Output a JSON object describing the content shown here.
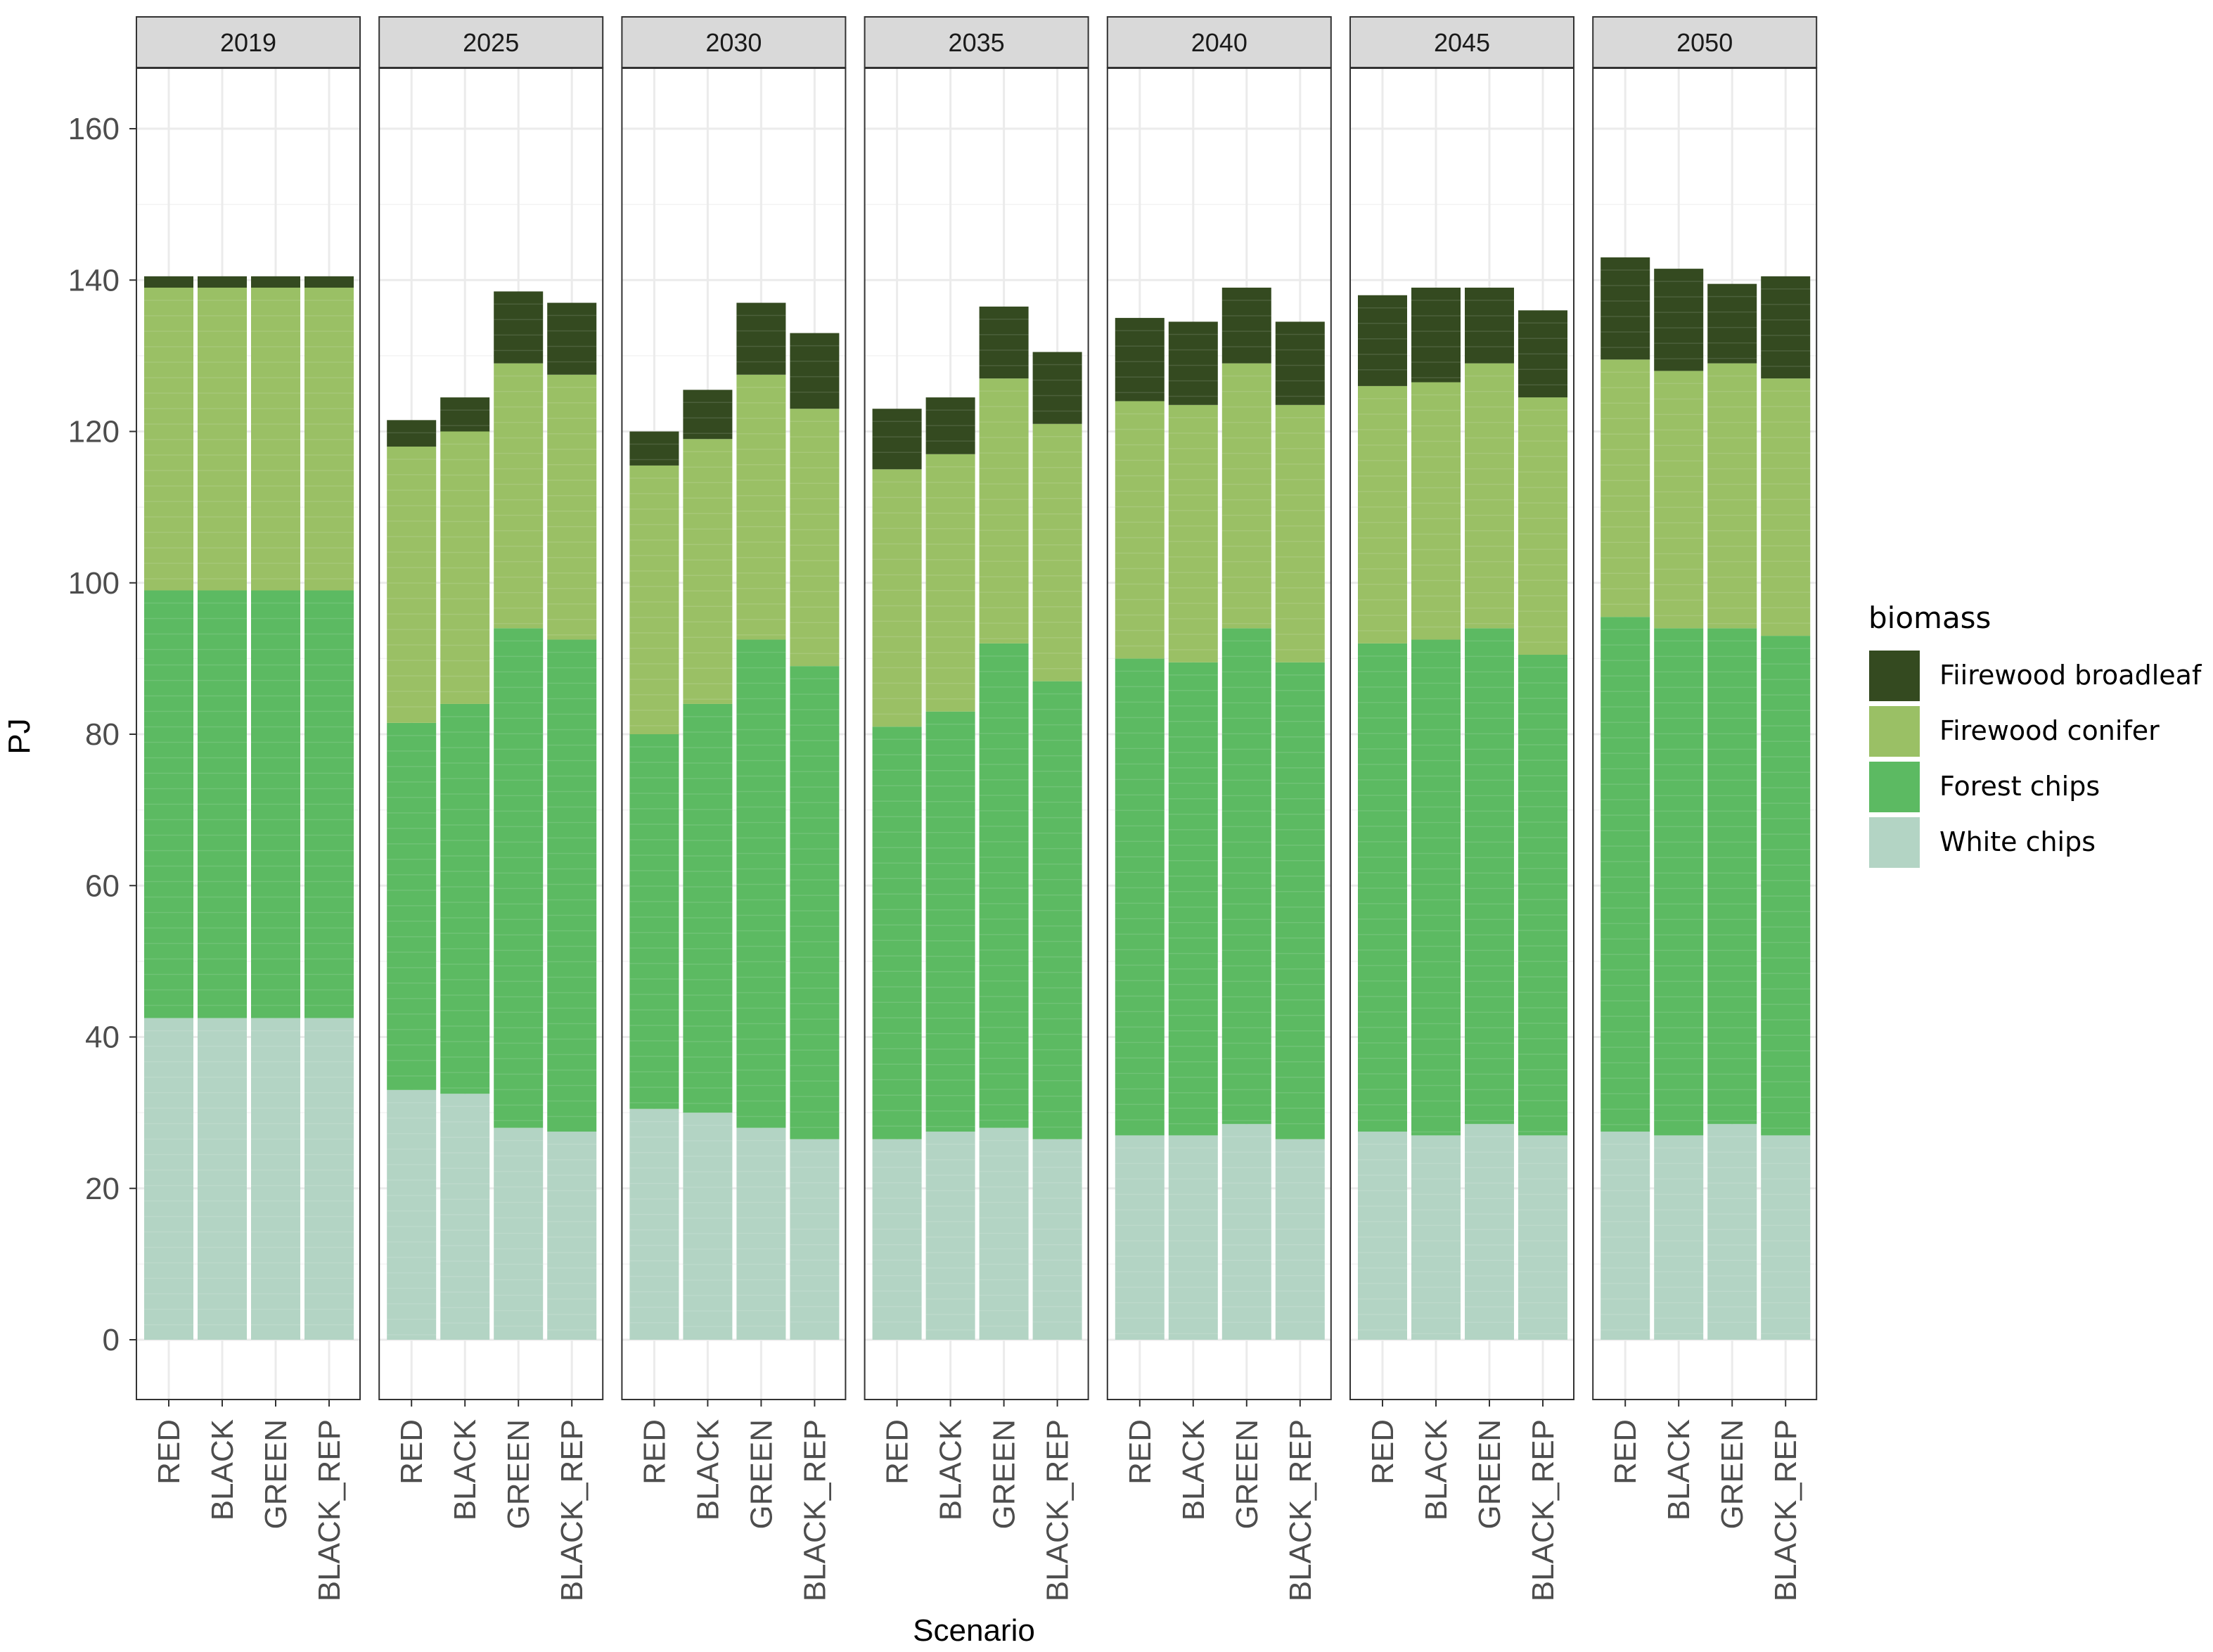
{
  "chart_data": {
    "type": "bar",
    "stacked": true,
    "facet_by": "year",
    "facets": [
      "2019",
      "2025",
      "2030",
      "2035",
      "2040",
      "2045",
      "2050"
    ],
    "categories": [
      "RED",
      "BLACK",
      "GREEN",
      "BLACK_REP"
    ],
    "xlabel": "Scenario",
    "ylabel": "PJ",
    "ylim": [
      -8,
      168
    ],
    "yticks": [
      "0",
      "20",
      "40",
      "60",
      "80",
      "100",
      "120",
      "140",
      "160"
    ],
    "grid": true,
    "legend": {
      "title": "biomass",
      "position": "right",
      "entries": [
        "Fiirewood broadleaf",
        "Firewood conifer",
        "Forest chips",
        "White chips"
      ]
    },
    "series": [
      {
        "name": "White chips",
        "color": "#b3d4c4",
        "values": [
          [
            42.5,
            42.5,
            42.5,
            42.5
          ],
          [
            33,
            32.5,
            28,
            27.5
          ],
          [
            30.5,
            30,
            28,
            26.5
          ],
          [
            26.5,
            27.5,
            28,
            26.5
          ],
          [
            27,
            27,
            28.5,
            26.5
          ],
          [
            27.5,
            27,
            28.5,
            27
          ],
          [
            27.5,
            27,
            28.5,
            27
          ]
        ]
      },
      {
        "name": "Forest chips",
        "color": "#5cba62",
        "values": [
          [
            56.5,
            56.5,
            56.5,
            56.5
          ],
          [
            48.5,
            51.5,
            66,
            65
          ],
          [
            49.5,
            54,
            64.5,
            62.5
          ],
          [
            54.5,
            55.5,
            64,
            60.5
          ],
          [
            63,
            62.5,
            65.5,
            63
          ],
          [
            64.5,
            65.5,
            65.5,
            63.5
          ],
          [
            68,
            67,
            65.5,
            66
          ]
        ]
      },
      {
        "name": "Firewood conifer",
        "color": "#9ac065",
        "values": [
          [
            40,
            40,
            40,
            40
          ],
          [
            36.5,
            36,
            35,
            35
          ],
          [
            35.5,
            35,
            35,
            34
          ],
          [
            34,
            34,
            35,
            34
          ],
          [
            34,
            34,
            35,
            34
          ],
          [
            34,
            34,
            35,
            34
          ],
          [
            34,
            34,
            35,
            34
          ]
        ]
      },
      {
        "name": "Fiirewood broadleaf",
        "color": "#344a20",
        "values": [
          [
            1.5,
            1.5,
            1.5,
            1.5
          ],
          [
            3.5,
            4.5,
            9.5,
            9.5
          ],
          [
            4.5,
            6.5,
            9.5,
            10
          ],
          [
            8,
            7.5,
            9.5,
            9.5
          ],
          [
            11,
            11,
            10,
            11
          ],
          [
            12,
            12.5,
            10,
            11.5
          ],
          [
            13.5,
            13.5,
            10.5,
            13.5
          ]
        ]
      }
    ]
  }
}
